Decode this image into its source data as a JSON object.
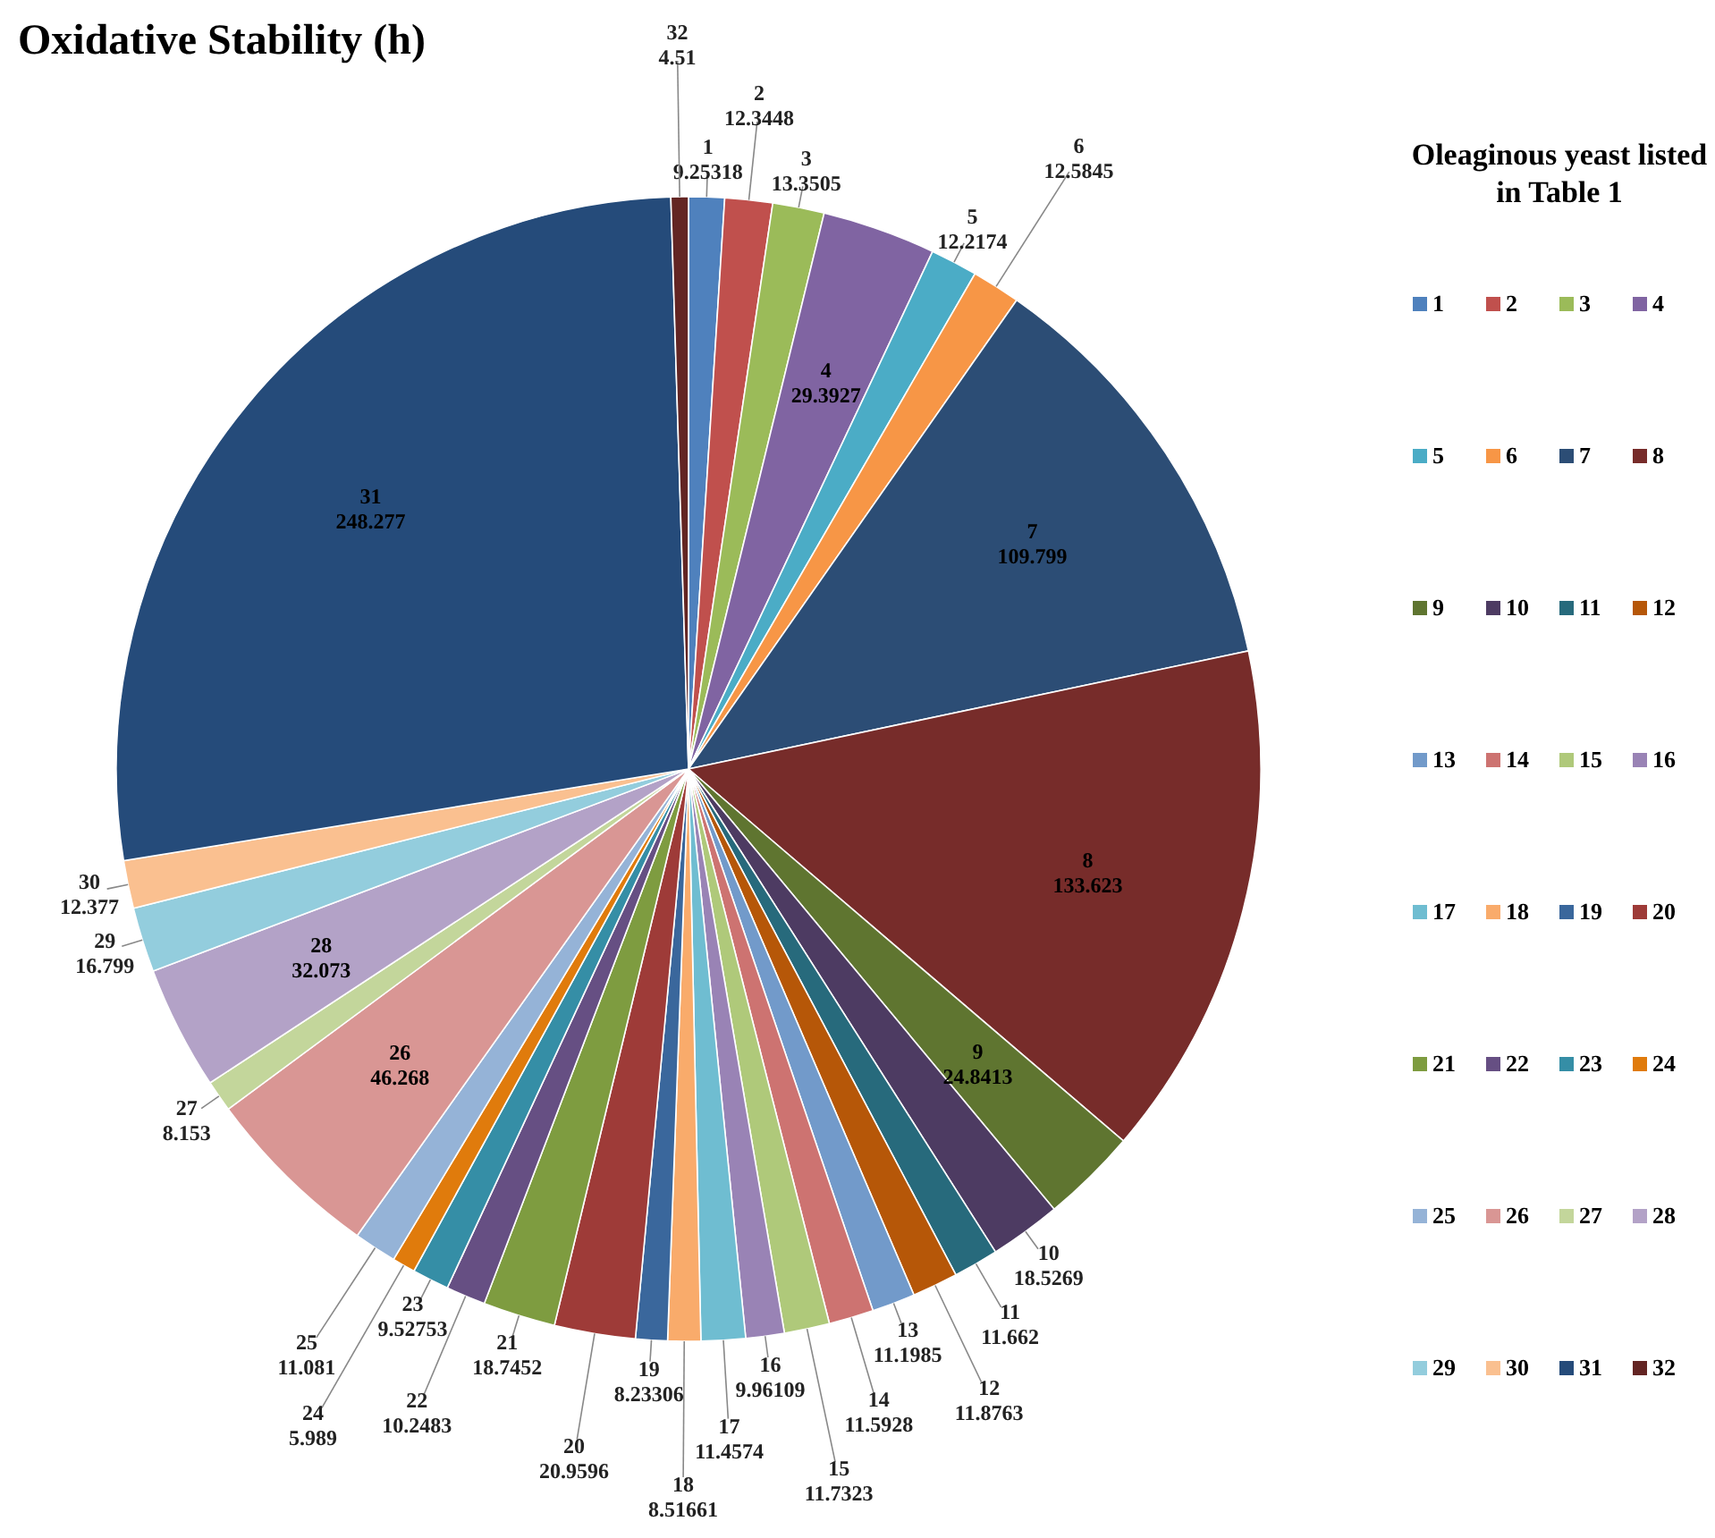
{
  "chart_data": {
    "type": "pie",
    "title": "Oxidative Stability (h)",
    "legend_title": "Oleaginous yeast listed in Table 1",
    "legend": "right",
    "data_labels": true,
    "categories": [
      "1",
      "2",
      "3",
      "4",
      "5",
      "6",
      "7",
      "8",
      "9",
      "10",
      "11",
      "12",
      "13",
      "14",
      "15",
      "16",
      "17",
      "18",
      "19",
      "20",
      "21",
      "22",
      "23",
      "24",
      "25",
      "26",
      "27",
      "28",
      "29",
      "30",
      "31",
      "32"
    ],
    "values": [
      9.25318,
      12.3448,
      13.3505,
      29.3927,
      12.2174,
      12.5845,
      109.799,
      133.623,
      24.8413,
      18.5269,
      11.662,
      11.8763,
      11.1985,
      11.5928,
      11.7323,
      9.96109,
      11.4574,
      8.51661,
      8.23306,
      20.9596,
      18.7452,
      10.2483,
      9.52753,
      5.989,
      11.081,
      46.268,
      8.153,
      32.073,
      16.799,
      12.377,
      248.277,
      4.51
    ],
    "colors": [
      "#4f81bd",
      "#c0504d",
      "#9bbb59",
      "#8064a2",
      "#4bacc6",
      "#f79646",
      "#2c4d75",
      "#772c2a",
      "#5f7530",
      "#4d3b62",
      "#276a7c",
      "#b65708",
      "#729aca",
      "#cd7371",
      "#afc97a",
      "#9983b5",
      "#6fbdd1",
      "#f9ab6b",
      "#3a679c",
      "#9e3b38",
      "#7e9c40",
      "#664f83",
      "#358ea6",
      "#e07b0c",
      "#95b3d7",
      "#d99694",
      "#c3d69b",
      "#b3a2c7",
      "#93cddd",
      "#fac090",
      "#254b7a",
      "#632523"
    ]
  }
}
